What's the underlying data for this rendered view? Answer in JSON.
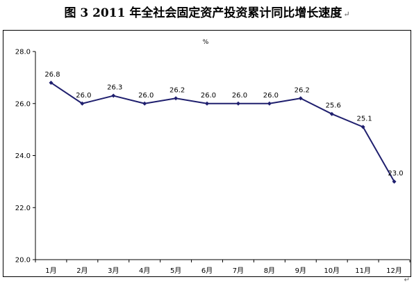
{
  "title": "图 3   2011 年全社会固定资产投资累计同比增长速度",
  "title_mark": "↵",
  "corner_mark": "↵",
  "colors": {
    "line": "#1f1f6e",
    "marker": "#1f1f6e",
    "axis": "#000000",
    "text": "#000000"
  },
  "chart_data": {
    "type": "line",
    "unit": "%",
    "categories": [
      "1月",
      "2月",
      "3月",
      "4月",
      "5月",
      "6月",
      "7月",
      "8月",
      "9月",
      "10月",
      "11月",
      "12月"
    ],
    "values": [
      26.8,
      26.0,
      26.3,
      26.0,
      26.2,
      26.0,
      26.0,
      26.0,
      26.2,
      25.6,
      25.1,
      23.0
    ],
    "data_labels": [
      "26.8",
      "26.0",
      "26.3",
      "26.0",
      "26.2",
      "26.0",
      "26.0",
      "26.0",
      "26.2",
      "25.6",
      "25.1",
      "23.0"
    ],
    "yticks": [
      "20.0",
      "22.0",
      "24.0",
      "26.0",
      "28.0"
    ],
    "ylim": [
      20,
      28
    ],
    "grid": false,
    "legend": "none"
  }
}
